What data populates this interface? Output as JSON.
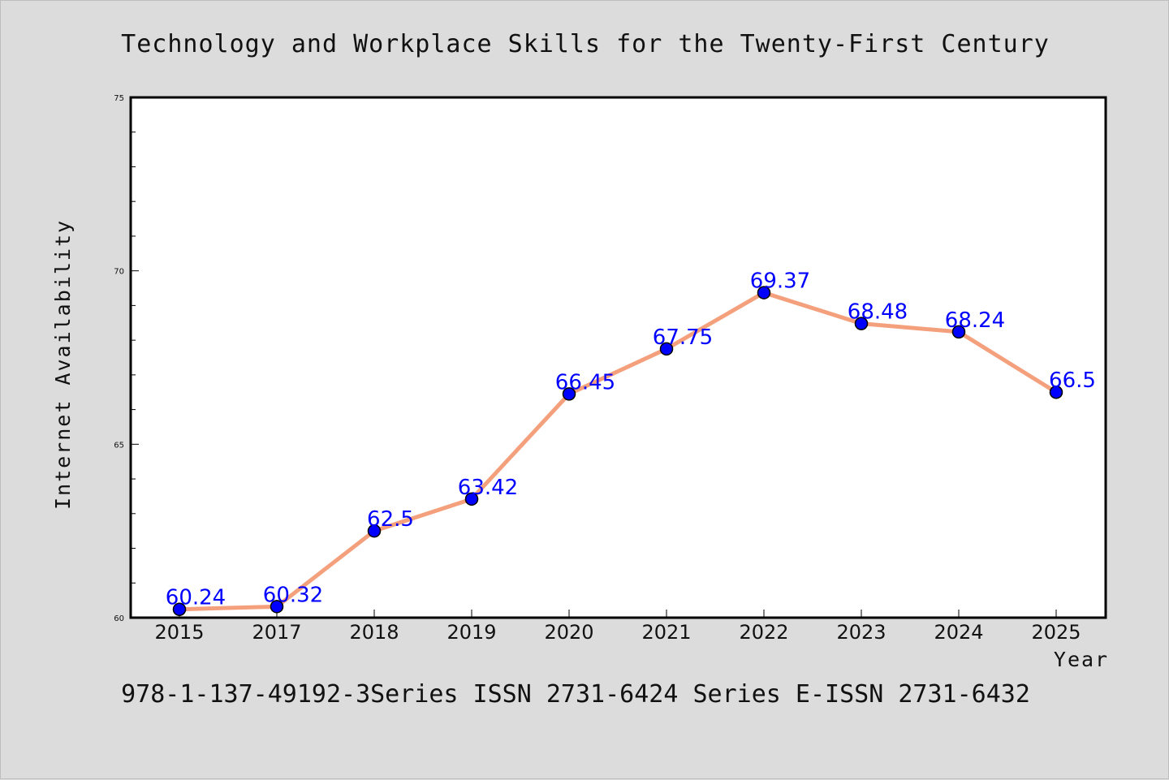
{
  "chart_data": {
    "type": "line",
    "title": "Technology and Workplace Skills for the Twenty-First Century",
    "xlabel": "Year",
    "ylabel": "Internet Availability",
    "footer": "978-1-137-49192-3Series ISSN 2731-6424 Series E-ISSN 2731-6432",
    "categories": [
      "2015",
      "2017",
      "2018",
      "2019",
      "2020",
      "2021",
      "2022",
      "2023",
      "2024",
      "2025"
    ],
    "series": [
      {
        "values": [
          60.24,
          60.32,
          62.5,
          63.42,
          66.45,
          67.75,
          69.37,
          68.48,
          68.24,
          66.5
        ],
        "data_labels": [
          "60.24",
          "60.32",
          "62.5",
          "63.42",
          "66.45",
          "67.75",
          "69.37",
          "68.48",
          "68.24",
          "66.5"
        ],
        "line_color": "#f4a07c",
        "marker_color": "#0000ff"
      }
    ],
    "ylim": [
      60,
      75
    ],
    "y_ticks": [
      "60",
      "65",
      "70",
      "75"
    ],
    "grid": false
  }
}
